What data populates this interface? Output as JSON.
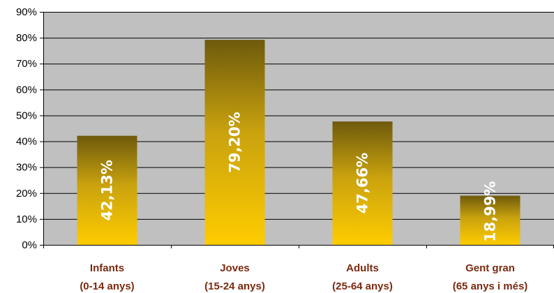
{
  "chart_data": {
    "type": "bar",
    "title": "",
    "xlabel": "",
    "ylabel": "",
    "categories": [
      [
        "Infants",
        "(0-14 anys)"
      ],
      [
        "Joves",
        "(15-24 anys)"
      ],
      [
        "Adults",
        "(25-64 anys)"
      ],
      [
        "Gent gran",
        "(65 anys i més)"
      ]
    ],
    "values": [
      42.13,
      79.2,
      47.66,
      18.99
    ],
    "data_labels": [
      "42,13%",
      "79,20%",
      "47,66%",
      "18,99%"
    ],
    "ylim": [
      0,
      90
    ],
    "yticks": [
      0,
      10,
      20,
      30,
      40,
      50,
      60,
      70,
      80,
      90
    ],
    "ytick_labels": [
      "0%",
      "10%",
      "20%",
      "30%",
      "40%",
      "50%",
      "60%",
      "70%",
      "80%",
      "90%"
    ],
    "grid": true,
    "legend": "none",
    "colors": {
      "plot_background": "#c0c0c0",
      "gridline": "#000000",
      "bar_top": "#6e5a0c",
      "bar_bottom": "#ffcc00",
      "category_text": "#7b2a10",
      "data_label_text": "#ffffff"
    }
  }
}
